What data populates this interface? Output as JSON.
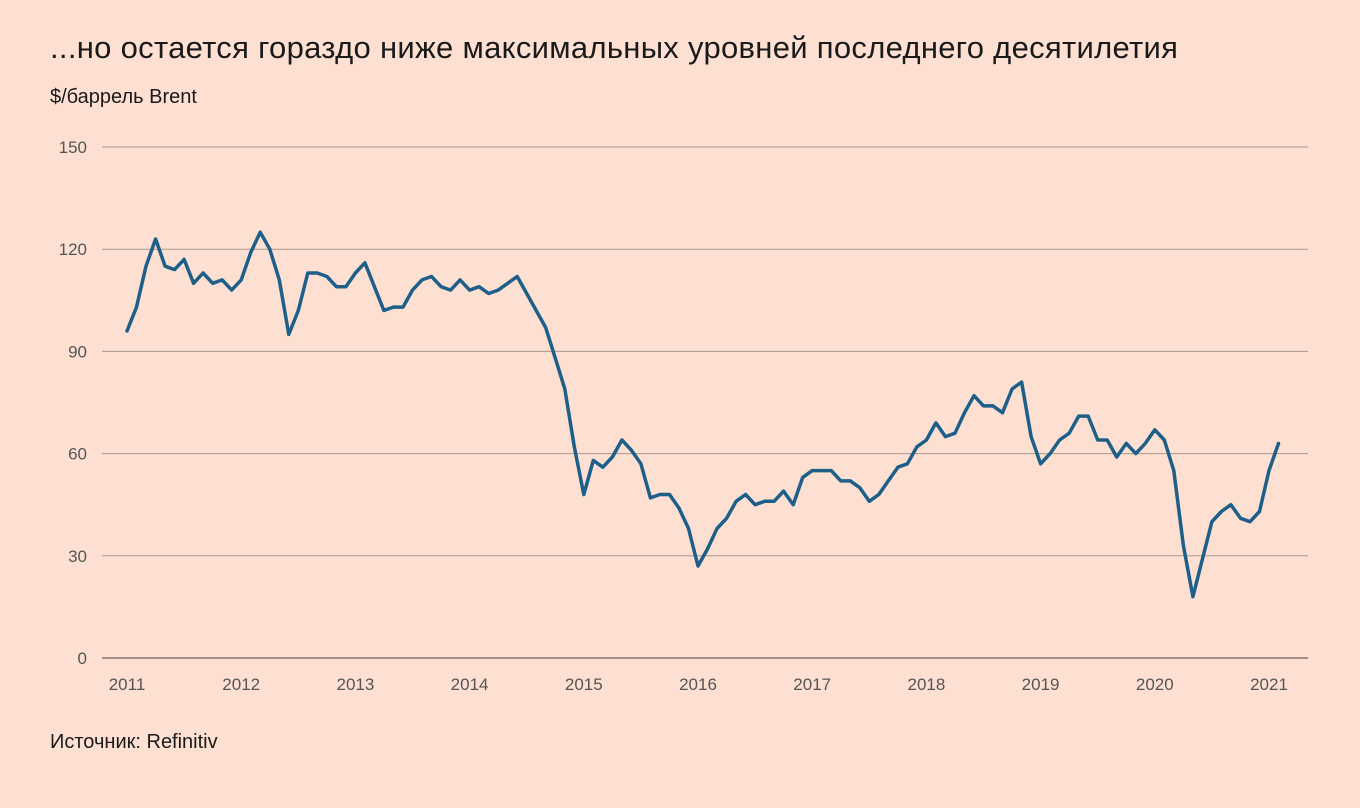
{
  "chart_data": {
    "type": "line",
    "title": "...но остается гораздо ниже максимальных уровней последнего десятилетия",
    "ylabel": "$/баррель Brent",
    "source": "Источник: Refinitiv",
    "ylim": [
      0,
      150
    ],
    "yticks": [
      0,
      30,
      60,
      90,
      120,
      150
    ],
    "xlim": [
      2011,
      2021.5
    ],
    "xticks": [
      {
        "value": 2011,
        "label": "2011"
      },
      {
        "value": 2012,
        "label": "2012"
      },
      {
        "value": 2013,
        "label": "2013"
      },
      {
        "value": 2014,
        "label": "2014"
      },
      {
        "value": 2015,
        "label": "2015"
      },
      {
        "value": 2016,
        "label": "2016"
      },
      {
        "value": 2017,
        "label": "2017"
      },
      {
        "value": 2018,
        "label": "2018"
      },
      {
        "value": 2019,
        "label": "2019"
      },
      {
        "value": 2020,
        "label": "2020"
      },
      {
        "value": 2021,
        "label": "2021"
      }
    ],
    "grid": true,
    "line_color": "#1e5f8a",
    "series": [
      {
        "x_start": 2011,
        "x_step_months": 1,
        "values": [
          96,
          103,
          115,
          123,
          115,
          114,
          117,
          110,
          113,
          110,
          111,
          108,
          111,
          119,
          125,
          120,
          111,
          95,
          102,
          113,
          113,
          112,
          109,
          109,
          113,
          116,
          109,
          102,
          103,
          103,
          108,
          111,
          112,
          109,
          108,
          111,
          108,
          109,
          107,
          108,
          110,
          112,
          107,
          102,
          97,
          88,
          79,
          62,
          48,
          58,
          56,
          59,
          64,
          61,
          57,
          47,
          48,
          48,
          44,
          38,
          27,
          32,
          38,
          41,
          46,
          48,
          45,
          46,
          46,
          49,
          45,
          53,
          55,
          55,
          55,
          52,
          52,
          50,
          46,
          48,
          52,
          56,
          57,
          62,
          64,
          69,
          65,
          66,
          72,
          77,
          74,
          74,
          72,
          79,
          81,
          65,
          57,
          60,
          64,
          66,
          71,
          71,
          64,
          64,
          59,
          63,
          60,
          63,
          67,
          64,
          55,
          33,
          18,
          29,
          40,
          43,
          45,
          41,
          40,
          43,
          55,
          63
        ]
      }
    ]
  }
}
